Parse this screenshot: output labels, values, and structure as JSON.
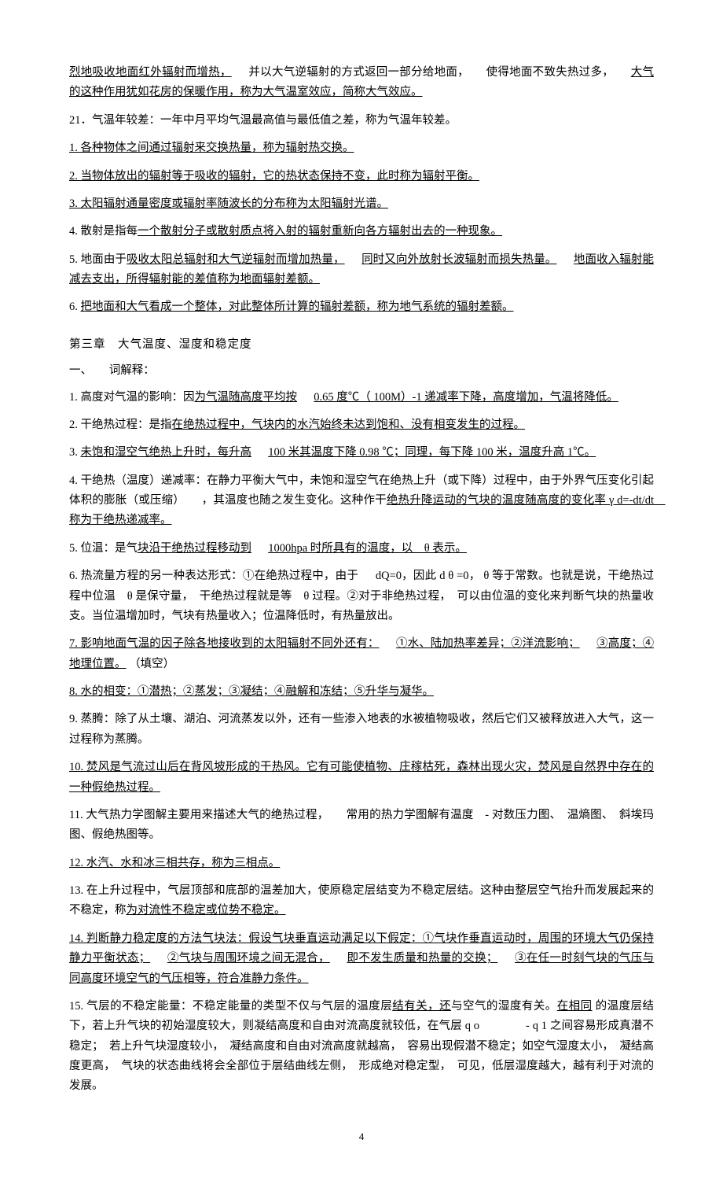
{
  "top": {
    "p1a": "烈地吸收地面红外辐射而增热，",
    "p1b": "并以大气逆辐射的方式返回一部分给地面，",
    "p1c": "使得地面不致失热过多，",
    "p1d": "大气的这种作用犹如花房的保暖作用，称为大气温室效应，简称大气效应。",
    "p21": "21．气温年较差：一年中月平均气温最高值与最低值之差，称为气温年较差。",
    "q1": "1. 各种物体之间通过辐射来交换热量，称为辐射热交换。",
    "q2": "2. 当物体放出的辐射等于吸收的辐射，它的热状态保持不变，此时称为辐射平衡。",
    "q3": "3. 太阳辐射通量密度或辐射率随波长的分布称为太阳辐射光谱。",
    "q4a": "4. 散射是指每",
    "q4b": "一个散射分子或散射质点将入射的辐射重新向各方辐射出去的一种现象。",
    "q5a": "5. 地面由于",
    "q5b": "吸收太阳总辐射和大气逆辐射而增加热量，",
    "q5c": "同时又向外放射长波辐射而损失热量。",
    "q5d": "地面收入辐射能减去支出，所得辐射能的差值称为地面辐射差额。",
    "q6a": "6. ",
    "q6b": "把地面和大气看成一个整体，对此整体所计算的辐射差额，称为地气系统的辐射差额。"
  },
  "ch3": {
    "title": "第三章　大气温度、湿度和稳定度",
    "section": "一、　　词解释：",
    "i1a": "1. 高度对气温的影响：因",
    "i1b": "为气温随高度平均按",
    "i1c": "0.65 度℃（ 100M）-1  递减率下降，高度增加，气温将降低。",
    "i2a": "2. 干绝热过程：是指",
    "i2b": "在绝热过程中，气块内的水汽始终未达到饱和、没有相变发生的过程。",
    "i3a": "3. ",
    "i3b": "未饱和湿空气绝热上升时，每升高",
    "i3c": "100 米其温度下降  0.98 ℃；同理，每下降  100 米，温度升高  1℃。",
    "i4a": "4. 干绝热（温度）递减率：在静力平衡大气中，未饱和湿空气在绝热上升（或下降）过程中，由于外界气压变化引起体积的膨胀（或压缩）",
    "i4b": "，其温度也随之发生变化。这种作干",
    "i4c": "绝热升降运动的气块的温度随高度的变化率  γ d=-dt/dt　称为干绝热递减率。",
    "i5a": "5. 位温：是气",
    "i5b": "块沿干绝热过程移动到",
    "i5c": "1000hpa 时所具有的温度，以　θ 表示。",
    "i6a": "6. 热流量方程的另一种表达形式：①在绝热过程中，由于",
    "i6b": "dQ=0，因此 d θ =0， θ 等于常数。也就是说，干绝热过程中位温　θ 是保守量，　干绝热过程就是等　θ 过程。②对于非绝热过程，　可以由位温的变化来判断气块的热量收支。当位温增加时，气块有热量收入；位温降低时，有热量放出。",
    "i7a": "7. 影响地面气温的因子除各地接收到的太阳辐射不同外还有：",
    "i7b": "①水、陆加热率差异；②洋流影响；",
    "i7c": "③高度；④地理位置。",
    "i7d": "（填空）",
    "i8a": "8. 水的相变：①潜热；②蒸发；③凝结；④融解和冻结；⑤升华与凝华。",
    "i9": "9.  蒸腾：除了从土壤、湖泊、河流蒸发以外，还有一些渗入地表的水被植物吸收，然后它们又被释放进入大气，这一过程称为蒸腾。",
    "i10a": "10. 焚风是气流过山后在背风坡形成的干热风。它有可能使植物、庄稼枯死，森林出现火灾，焚风是自然界中存在的一种假绝热过程。",
    "i11": "11. 大气热力学图解主要用来描述大气的绝热过程，　　常用的热力学图解有温度　- 对数压力图、　温熵图、　斜埃玛图、假绝热图等。",
    "i12a": "12. 水汽、水和冰三相共存，称为三相点。",
    "i13a": "13. 在上升过程中，气层顶部和底部的温差加大，使原稳定层结变为不稳定层结。这种由整层空气抬升而发展起来的不稳定，称",
    "i13b": "为对流性不稳定或位势不稳定。",
    "i14a": "14. 判断静力稳定度的方法气块法：假设气块垂直运动满足以下假定：①气块作垂直运动时，周围的环境大气仍保持静力平衡状态；",
    "i14b": "②气块与周围环境之间无混合，",
    "i14c": "即不发生质量和热量的交换；",
    "i14d": "③在任一时刻气块的气压与同高度环境空气的气压相等，符合准静力条件。",
    "i15a": "15. 气层的不稳定能量：不稳定能量的类型不仅与气层的温度层",
    "i15b": "结有关，还",
    "i15c": "与空气的湿度有关。",
    "i15d": "在相同",
    "i15e": "的温度层结下，若上升气块的初始湿度较大，则凝结高度和自由对流高度就较低，在气层 q  o　　　　- q 1  之间容易形成真潜不稳定；　若上升气块湿度较小，　凝结高度和自由对流高度就越高，　容易出现假潜不稳定；如空气湿度太小，　凝结高度更高，　气块的状态曲线将会全部位于层结曲线左侧，　形成绝对稳定型，　可见，低层湿度越大，越有利于对流的发展。"
  },
  "page_number": "4"
}
